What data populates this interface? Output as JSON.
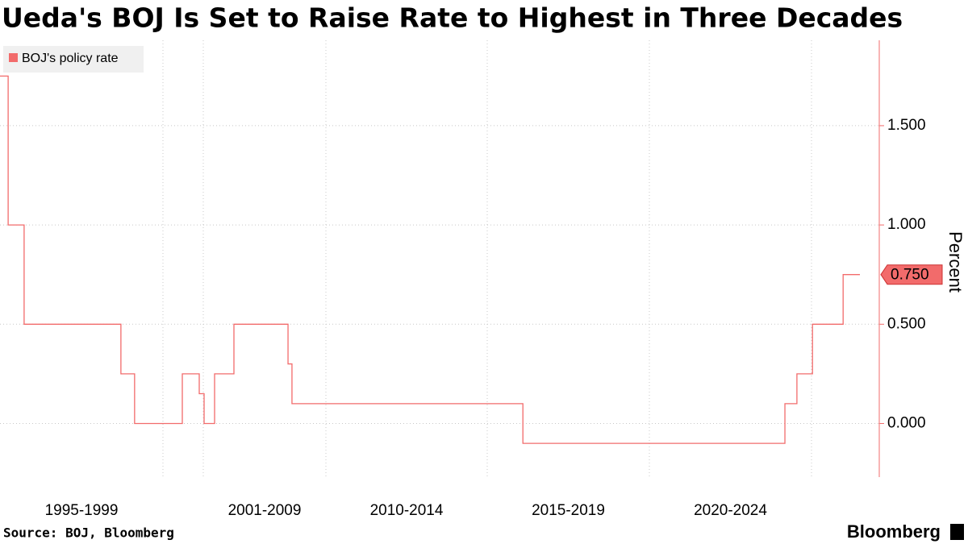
{
  "chart_data": {
    "type": "step-line",
    "title": "Ueda's BOJ Is Set to Raise Rate to Highest in Three Decades",
    "y_label": "Percent",
    "source": "Source: BOJ, Bloomberg",
    "brand": "Bloomberg",
    "categories": [
      "1995-1999",
      null,
      "2001-2009",
      "2010-2014",
      "2015-2019",
      "2020-2024",
      null
    ],
    "xticks": [
      1995,
      2000,
      2001,
      2010,
      2015,
      2020,
      2025
    ],
    "xlim": [
      1995,
      2026.5
    ],
    "ylim": [
      -0.27,
      1.93
    ],
    "yticks": [
      {
        "value": 0,
        "label": "0.000"
      },
      {
        "value": 0.5,
        "label": "0.500"
      },
      {
        "value": 1,
        "label": "1.000"
      },
      {
        "value": 1.5,
        "label": "1.500"
      }
    ],
    "grid": true,
    "legend": "top-left",
    "series": [
      {
        "name": "BOJ's policy rate",
        "color": "#f26b6b",
        "x": [
          1995,
          1995.25,
          1995.74,
          1998.71,
          1999.13,
          2000.48,
          2000.9,
          2001.06,
          2001.83,
          2003.25,
          2007.22,
          2007.51,
          2016.1,
          2024.18,
          2024.55,
          2025.03,
          2025.98,
          2026.5
        ],
        "values": [
          1.75,
          1.0,
          0.5,
          0.25,
          0,
          0.25,
          0.15,
          0,
          0.25,
          0.5,
          0.3,
          0.1,
          -0.1,
          0.1,
          0.25,
          0.5,
          0.75,
          0.75
        ],
        "value_labels": [
          null,
          null,
          null,
          null,
          null,
          null,
          null,
          null,
          null,
          null,
          null,
          null,
          null,
          null,
          null,
          null,
          null,
          "0.750"
        ]
      }
    ]
  }
}
